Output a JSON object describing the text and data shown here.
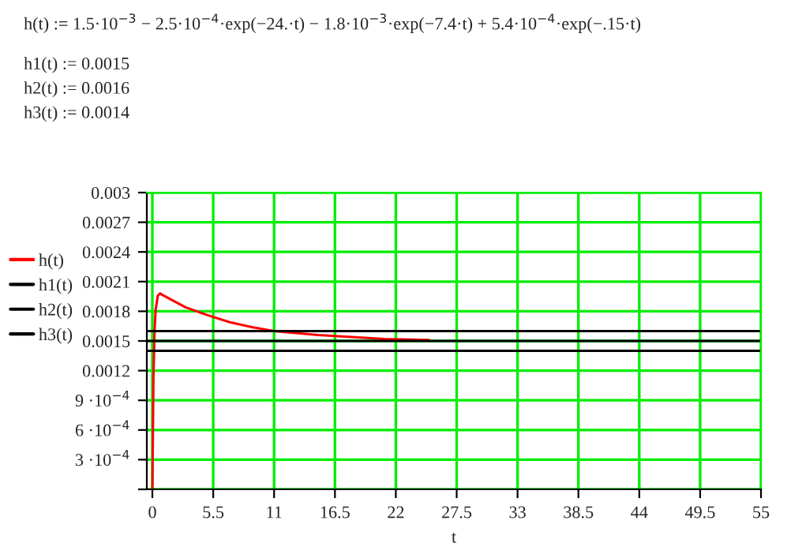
{
  "chart_data": {
    "type": "line",
    "annotations": [
      "h(t) := 1.5·10$^{−3}$ − 2.5·10$^{−4}$·exp(−24.·t) − 1.8·10$^{−3}$·exp(−7.4·t) + 5.4·10$^{−4}$·exp(−.15·t)",
      "h1(t) := 0.0015",
      "h2(t) := 0.0016",
      "h3(t) := 0.0014"
    ],
    "xlabel": "t",
    "series": [
      {
        "name": "h(t)",
        "color": "#ff0000",
        "x": [
          0,
          0.1,
          0.2,
          0.3,
          0.5,
          0.7,
          1,
          2,
          3,
          4,
          5,
          7,
          9,
          11,
          13,
          15,
          18,
          21,
          25
        ],
        "values": [
          0,
          0.00115,
          0.00161,
          0.00182,
          0.00196,
          0.00198,
          0.00196,
          0.0019,
          0.00184,
          0.0018,
          0.00176,
          0.00169,
          0.00164,
          0.0016,
          0.00158,
          0.00156,
          0.00154,
          0.00152,
          0.00151
        ]
      },
      {
        "name": "h1(t)",
        "color": "#000000",
        "x": [
          -0.5,
          55
        ],
        "values": [
          0.0015,
          0.0015
        ]
      },
      {
        "name": "h2(t)",
        "color": "#000000",
        "x": [
          -0.5,
          55
        ],
        "values": [
          0.0016,
          0.0016
        ]
      },
      {
        "name": "h3(t)",
        "color": "#000000",
        "x": [
          -0.5,
          55
        ],
        "values": [
          0.0014,
          0.0014
        ]
      }
    ],
    "xlim": [
      -0.5,
      55
    ],
    "xticks": [
      0,
      5.5,
      11,
      16.5,
      22,
      27.5,
      33,
      38.5,
      44,
      49.5,
      55
    ],
    "ylim": [
      0,
      0.003
    ],
    "yticks": [
      {
        "value": 0,
        "label": null
      },
      {
        "value": 0.0003,
        "label": "3 ·10$^{−4}$"
      },
      {
        "value": 0.0006,
        "label": "6 ·10$^{−4}$"
      },
      {
        "value": 0.0009,
        "label": "9 ·10$^{−4}$"
      },
      0.0012,
      0.0015,
      0.0018,
      0.0021,
      0.0024,
      0.0027,
      0.003
    ],
    "grid": true,
    "legend": "left",
    "line_style": "solid",
    "marker": "none"
  }
}
